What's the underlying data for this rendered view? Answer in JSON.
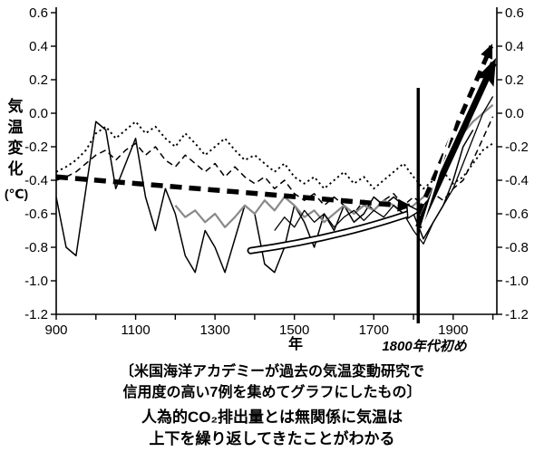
{
  "axis": {
    "y_label": "気温変化",
    "y_unit": "(℃)",
    "x_label": "年",
    "y_ticks": [
      "0.6",
      "0.4",
      "0.2",
      "0.0",
      "-0.2",
      "-0.4",
      "-0.6",
      "-0.8",
      "-1.0",
      "-1.2"
    ],
    "x_ticks_labeled": [
      900,
      1100,
      1300,
      1500,
      1700,
      1900
    ]
  },
  "annotations": {
    "vline_year": 1812,
    "vline_label": "1800年代初め"
  },
  "caption": {
    "line1": "〔米国海洋アカデミーが過去の気温変動研究で",
    "line2": "信用度の高い7例を集めてグラフにしたもの〕",
    "line3": "人為的CO₂排出量とは無関係に気温は",
    "line4": "上下を繰り返してきたことがわかる"
  },
  "chart_data": {
    "type": "line",
    "title": "",
    "xlabel": "年",
    "ylabel": "気温変化(℃)",
    "xlim": [
      900,
      2010
    ],
    "ylim": [
      -1.2,
      0.6
    ],
    "grid": false,
    "legend": "none",
    "series": [
      {
        "name": "reconstruction-1-solid-high-amplitude",
        "color": "#000000",
        "dash": "solid",
        "width": 1.5,
        "x0": 900,
        "dx": 25,
        "y": [
          -0.5,
          -0.8,
          -0.85,
          -0.45,
          -0.05,
          -0.1,
          -0.45,
          -0.3,
          -0.15,
          -0.5,
          -0.7,
          -0.45,
          -0.6,
          -0.85,
          -0.95,
          -0.7,
          -0.8,
          -0.95,
          -0.75,
          -0.55,
          -0.6,
          -0.9,
          -0.95,
          -0.8,
          -0.55,
          -0.65,
          -0.8,
          -0.6,
          -0.7,
          -0.55,
          -0.65,
          -0.6,
          -0.5,
          -0.55,
          -0.5,
          -0.55,
          -0.6,
          -0.75,
          -0.65,
          -0.55,
          -0.4,
          -0.2,
          -0.1
        ]
      },
      {
        "name": "reconstruction-2-dotted",
        "color": "#000000",
        "dash": "dotted",
        "width": 1.9,
        "x0": 900,
        "dx": 25,
        "y": [
          -0.35,
          -0.32,
          -0.28,
          -0.22,
          -0.12,
          -0.08,
          -0.15,
          -0.1,
          -0.05,
          -0.12,
          -0.08,
          -0.15,
          -0.2,
          -0.12,
          -0.18,
          -0.25,
          -0.2,
          -0.15,
          -0.22,
          -0.28,
          -0.25,
          -0.3,
          -0.35,
          -0.3,
          -0.38,
          -0.42,
          -0.38,
          -0.45,
          -0.4,
          -0.35,
          -0.42,
          -0.38,
          -0.45,
          -0.4,
          -0.35,
          -0.3,
          -0.38,
          -0.45,
          -0.4,
          -0.35,
          -0.42,
          -0.38,
          -0.3,
          -0.22,
          -0.18
        ]
      },
      {
        "name": "reconstruction-3-dashed",
        "color": "#000000",
        "dash": "dashed",
        "width": 1.5,
        "x0": 900,
        "dx": 25,
        "y": [
          -0.4,
          -0.38,
          -0.35,
          -0.3,
          -0.25,
          -0.22,
          -0.28,
          -0.22,
          -0.18,
          -0.25,
          -0.2,
          -0.28,
          -0.32,
          -0.25,
          -0.3,
          -0.35,
          -0.3,
          -0.38,
          -0.32,
          -0.38,
          -0.42,
          -0.38,
          -0.45,
          -0.4,
          -0.48,
          -0.52,
          -0.48,
          -0.55,
          -0.5,
          -0.55,
          -0.6,
          -0.52,
          -0.58,
          -0.52,
          -0.48,
          -0.55,
          -0.5,
          -0.55,
          -0.48,
          -0.52,
          -0.45,
          -0.4,
          -0.28,
          -0.15,
          -0.02
        ]
      },
      {
        "name": "reconstruction-4-gray",
        "color": "#8a8a8a",
        "dash": "solid",
        "width": 2.2,
        "x0": 1200,
        "dx": 25,
        "y": [
          -0.55,
          -0.62,
          -0.58,
          -0.65,
          -0.6,
          -0.68,
          -0.62,
          -0.55,
          -0.6,
          -0.52,
          -0.58,
          -0.5,
          -0.55,
          -0.62,
          -0.58,
          -0.65,
          -0.6,
          -0.55,
          -0.6,
          -0.55,
          -0.58,
          -0.52,
          -0.55,
          -0.6,
          -0.55,
          -0.5,
          -0.45,
          -0.35,
          -0.22,
          -0.12,
          -0.05,
          0.0,
          0.05
        ]
      },
      {
        "name": "reconstruction-5-solid",
        "color": "#000000",
        "dash": "solid",
        "width": 1.3,
        "x0": 1450,
        "dx": 25,
        "y": [
          -0.7,
          -0.62,
          -0.68,
          -0.58,
          -0.65,
          -0.6,
          -0.68,
          -0.62,
          -0.58,
          -0.64,
          -0.58,
          -0.62,
          -0.55,
          -0.6,
          -0.7,
          -0.78,
          -0.65,
          -0.55,
          -0.45,
          -0.3,
          -0.15,
          0.0,
          0.1
        ]
      }
    ],
    "trend_dashed": {
      "x": [
        900,
        1790
      ],
      "y": [
        -0.38,
        -0.555
      ]
    },
    "trend_dashed_rise": {
      "x": [
        1812,
        1996
      ],
      "y": [
        -0.6,
        0.4
      ]
    },
    "arrow_rise": {
      "x": [
        1812,
        2002
      ],
      "y": [
        -0.68,
        0.3
      ]
    },
    "curved_white_arrow": {
      "x": [
        1390,
        1600,
        1788
      ],
      "y": [
        -0.82,
        -0.75,
        -0.6
      ]
    }
  }
}
